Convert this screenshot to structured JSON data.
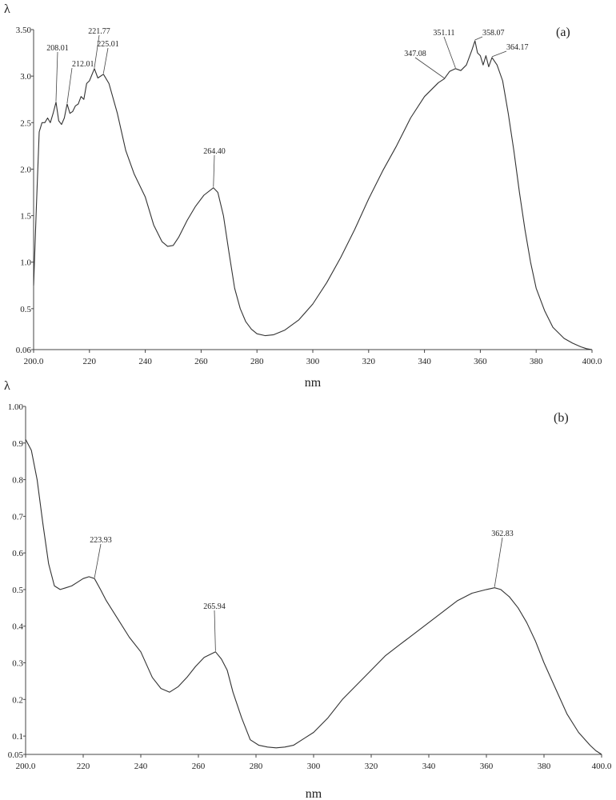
{
  "chart_data": [
    {
      "type": "line",
      "panel_label": "(a)",
      "xlabel": "nm",
      "ylabel": "λ",
      "xlim": [
        200,
        400
      ],
      "ylim": [
        0.06,
        3.5
      ],
      "x_ticks": [
        200,
        220,
        240,
        260,
        280,
        300,
        320,
        340,
        360,
        380,
        400
      ],
      "x_tick_labels": [
        "200.0",
        "220",
        "240",
        "260",
        "280",
        "300",
        "320",
        "340",
        "360",
        "380",
        "400.0"
      ],
      "y_ticks": [
        0.06,
        0.5,
        1.0,
        1.5,
        2.0,
        2.5,
        3.0,
        3.5
      ],
      "y_tick_labels": [
        "0.06",
        "0.5",
        "1.0",
        "1.5",
        "2.0",
        "2.5",
        "3.0",
        "3.50"
      ],
      "grid": false,
      "series": [
        {
          "x": [
            200,
            201,
            202,
            203,
            204,
            205,
            206,
            207,
            208.01,
            209,
            210,
            211,
            212.01,
            213,
            214,
            215,
            216,
            217,
            218,
            219,
            220,
            221.77,
            223,
            225.01,
            227,
            230,
            233,
            236,
            240,
            243,
            246,
            248,
            250,
            252,
            255,
            258,
            261,
            264.4,
            266,
            268,
            270,
            272,
            274,
            276,
            278,
            280,
            283,
            286,
            290,
            295,
            300,
            305,
            310,
            315,
            320,
            325,
            330,
            335,
            340,
            345,
            347.08,
            349,
            351.11,
            353,
            355,
            356,
            357,
            358.07,
            359,
            360,
            361,
            362,
            363,
            364.17,
            366,
            368,
            370,
            372,
            374,
            376,
            378,
            380,
            383,
            386,
            390,
            393,
            396,
            398,
            400
          ],
          "y": [
            0.75,
            1.6,
            2.4,
            2.5,
            2.5,
            2.55,
            2.5,
            2.6,
            2.72,
            2.52,
            2.48,
            2.55,
            2.7,
            2.6,
            2.62,
            2.68,
            2.7,
            2.78,
            2.75,
            2.92,
            2.95,
            3.08,
            2.98,
            3.02,
            2.92,
            2.6,
            2.2,
            1.95,
            1.7,
            1.4,
            1.22,
            1.17,
            1.18,
            1.27,
            1.45,
            1.6,
            1.72,
            1.8,
            1.75,
            1.5,
            1.1,
            0.72,
            0.5,
            0.36,
            0.28,
            0.23,
            0.21,
            0.22,
            0.27,
            0.38,
            0.55,
            0.78,
            1.05,
            1.35,
            1.68,
            1.98,
            2.25,
            2.55,
            2.78,
            2.93,
            2.97,
            3.05,
            3.08,
            3.06,
            3.12,
            3.2,
            3.28,
            3.38,
            3.25,
            3.22,
            3.12,
            3.22,
            3.1,
            3.2,
            3.12,
            2.95,
            2.6,
            2.2,
            1.75,
            1.35,
            1.0,
            0.72,
            0.48,
            0.3,
            0.18,
            0.13,
            0.09,
            0.07,
            0.06
          ]
        }
      ],
      "annotations": [
        {
          "text": "208.01",
          "x": 208.01,
          "y": 2.72
        },
        {
          "text": "212.01",
          "x": 212.01,
          "y": 2.7
        },
        {
          "text": "221.77",
          "x": 221.77,
          "y": 3.08
        },
        {
          "text": "225.01",
          "x": 225.01,
          "y": 3.02
        },
        {
          "text": "264.40",
          "x": 264.4,
          "y": 1.8
        },
        {
          "text": "347.08",
          "x": 347.08,
          "y": 2.97
        },
        {
          "text": "351.11",
          "x": 351.11,
          "y": 3.08
        },
        {
          "text": "358.07",
          "x": 358.07,
          "y": 3.38
        },
        {
          "text": "364.17",
          "x": 364.17,
          "y": 3.2
        }
      ]
    },
    {
      "type": "line",
      "panel_label": "(b)",
      "xlabel": "nm",
      "ylabel": "λ",
      "xlim": [
        200,
        400
      ],
      "ylim": [
        0.05,
        1.0
      ],
      "x_ticks": [
        200,
        220,
        240,
        260,
        280,
        300,
        320,
        340,
        360,
        380,
        400
      ],
      "x_tick_labels": [
        "200.0",
        "220",
        "240",
        "260",
        "280",
        "300",
        "320",
        "340",
        "360",
        "380",
        "400.0"
      ],
      "y_ticks": [
        0.05,
        0.1,
        0.2,
        0.3,
        0.4,
        0.5,
        0.6,
        0.7,
        0.8,
        0.9,
        1.0
      ],
      "y_tick_labels": [
        "0.05",
        "0.1",
        "0.2",
        "0.3",
        "0.4",
        "0.5",
        "0.6",
        "0.7",
        "0.8",
        "0.9",
        "1.00"
      ],
      "grid": false,
      "series": [
        {
          "x": [
            200,
            202,
            204,
            206,
            208,
            210,
            212,
            214,
            216,
            218,
            220,
            222,
            223.93,
            226,
            228,
            232,
            236,
            240,
            244,
            247,
            250,
            253,
            256,
            259,
            262,
            265.94,
            268,
            270,
            272,
            275,
            278,
            281,
            284,
            287,
            290,
            293,
            296,
            300,
            305,
            310,
            315,
            320,
            325,
            330,
            335,
            340,
            345,
            350,
            355,
            360,
            362.83,
            365,
            368,
            371,
            374,
            377,
            380,
            384,
            388,
            392,
            396,
            398,
            400
          ],
          "y": [
            0.91,
            0.88,
            0.8,
            0.68,
            0.57,
            0.51,
            0.5,
            0.505,
            0.51,
            0.52,
            0.53,
            0.535,
            0.53,
            0.5,
            0.47,
            0.42,
            0.37,
            0.33,
            0.26,
            0.23,
            0.22,
            0.235,
            0.26,
            0.29,
            0.315,
            0.33,
            0.31,
            0.28,
            0.22,
            0.15,
            0.09,
            0.075,
            0.07,
            0.068,
            0.07,
            0.075,
            0.09,
            0.11,
            0.15,
            0.2,
            0.24,
            0.28,
            0.32,
            0.35,
            0.38,
            0.41,
            0.44,
            0.47,
            0.49,
            0.5,
            0.505,
            0.5,
            0.48,
            0.45,
            0.41,
            0.36,
            0.3,
            0.23,
            0.16,
            0.11,
            0.075,
            0.06,
            0.05
          ]
        }
      ],
      "annotations": [
        {
          "text": "223.93",
          "x": 223.93,
          "y": 0.53
        },
        {
          "text": "265.94",
          "x": 265.94,
          "y": 0.33
        },
        {
          "text": "362.83",
          "x": 362.83,
          "y": 0.505
        }
      ]
    }
  ]
}
